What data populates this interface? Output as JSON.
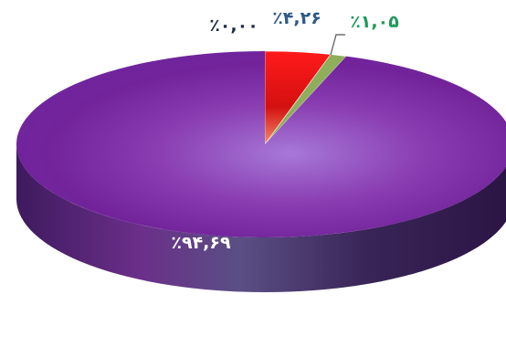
{
  "chart_data": {
    "type": "pie",
    "style": "3d",
    "slices": [
      {
        "label": "٪۹۴,۶۹",
        "value": 94.69,
        "color": "#7a2aa8"
      },
      {
        "label": "٪۴,۲۶",
        "value": 4.26,
        "color": "#e01010"
      },
      {
        "label": "٪۱,۰۵",
        "value": 1.05,
        "color": "#8fae5a"
      },
      {
        "label": "٪۰,۰۰",
        "value": 0.0,
        "color": "#2e5a87"
      }
    ],
    "label_colors": {
      "purple": "#ffffff",
      "red": "#2e5a87",
      "green": "#1f9a5b",
      "zero": "#1f2a44"
    }
  }
}
